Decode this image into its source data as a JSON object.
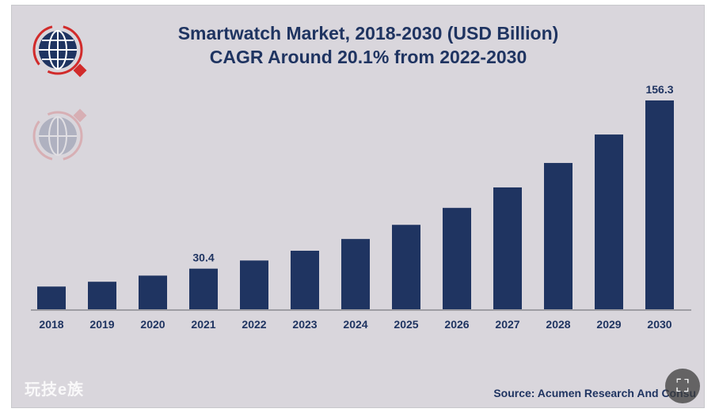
{
  "chart_data": {
    "type": "bar",
    "title": "Smartwatch Market, 2018-2030 (USD Billion)",
    "subtitle": "CAGR Around 20.1% from 2022-2030",
    "categories": [
      "2018",
      "2019",
      "2020",
      "2021",
      "2022",
      "2023",
      "2024",
      "2025",
      "2026",
      "2027",
      "2028",
      "2029",
      "2030"
    ],
    "values": [
      17.0,
      20.6,
      25.2,
      30.4,
      36.5,
      43.8,
      52.6,
      63.2,
      75.9,
      91.2,
      109.5,
      130.8,
      156.3
    ],
    "data_labels": {
      "3": "30.4",
      "12": "156.3"
    },
    "xlabel": "",
    "ylabel": "",
    "ylim": [
      0,
      165
    ],
    "grid": false,
    "bar_color": "#1f3461"
  },
  "source": "Source: Acumen Research And Consu",
  "watermark": "玩技e族",
  "expand_icon": "⛶",
  "colors": {
    "background": "#d9d6dc",
    "title": "#1f3461",
    "logo_red": "#d12b2b"
  }
}
